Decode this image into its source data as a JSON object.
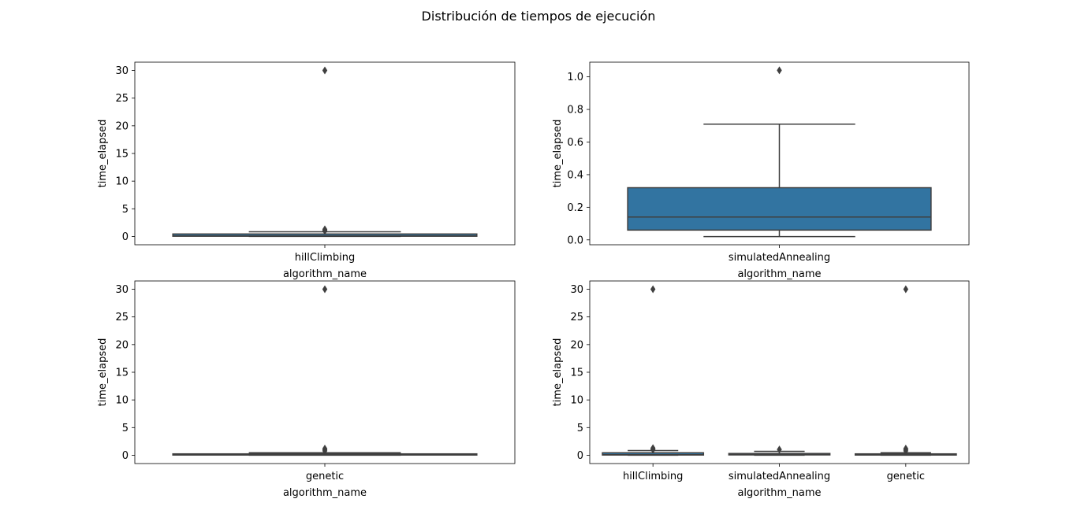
{
  "figure": {
    "title": "Distribución de tiempos de ejecución"
  },
  "colors": {
    "box_fill": "#3274a1",
    "box_edge": "#3f3f3f",
    "axes_edge": "#000000"
  },
  "chart_data": [
    {
      "type": "box",
      "xlabel": "algorithm_name",
      "ylabel": "time_elapsed",
      "ylim": [
        -1.5,
        31.5
      ],
      "yticks": [
        0,
        5,
        10,
        15,
        20,
        25,
        30
      ],
      "categories": [
        "hillClimbing"
      ],
      "boxes": [
        {
          "category": "hillClimbing",
          "whisker_low": 0.02,
          "q1": 0.04,
          "median": 0.1,
          "q3": 0.45,
          "whisker_high": 0.85,
          "outliers": [
            1.0,
            1.1,
            1.3,
            30.0
          ]
        }
      ]
    },
    {
      "type": "box",
      "xlabel": "algorithm_name",
      "ylabel": "time_elapsed",
      "ylim": [
        -0.03,
        1.09
      ],
      "yticks": [
        0.0,
        0.2,
        0.4,
        0.6,
        0.8,
        1.0
      ],
      "tick_labels": [
        "0.0",
        "0.2",
        "0.4",
        "0.6",
        "0.8",
        "1.0"
      ],
      "categories": [
        "simulatedAnnealing"
      ],
      "boxes": [
        {
          "category": "simulatedAnnealing",
          "whisker_low": 0.02,
          "q1": 0.06,
          "median": 0.14,
          "q3": 0.32,
          "whisker_high": 0.71,
          "outliers": [
            1.04
          ]
        }
      ]
    },
    {
      "type": "box",
      "xlabel": "algorithm_name",
      "ylabel": "time_elapsed",
      "ylim": [
        -1.5,
        31.5
      ],
      "yticks": [
        0,
        5,
        10,
        15,
        20,
        25,
        30
      ],
      "categories": [
        "genetic"
      ],
      "boxes": [
        {
          "category": "genetic",
          "whisker_low": 0.01,
          "q1": 0.05,
          "median": 0.1,
          "q3": 0.25,
          "whisker_high": 0.45,
          "outliers": [
            0.8,
            1.0,
            1.2,
            30.0
          ]
        }
      ]
    },
    {
      "type": "box",
      "xlabel": "algorithm_name",
      "ylabel": "time_elapsed",
      "ylim": [
        -1.5,
        31.5
      ],
      "yticks": [
        0,
        5,
        10,
        15,
        20,
        25,
        30
      ],
      "categories": [
        "hillClimbing",
        "simulatedAnnealing",
        "genetic"
      ],
      "boxes": [
        {
          "category": "hillClimbing",
          "whisker_low": 0.02,
          "q1": 0.04,
          "median": 0.1,
          "q3": 0.45,
          "whisker_high": 0.85,
          "outliers": [
            1.0,
            1.1,
            1.3,
            30.0
          ]
        },
        {
          "category": "simulatedAnnealing",
          "whisker_low": 0.02,
          "q1": 0.06,
          "median": 0.14,
          "q3": 0.32,
          "whisker_high": 0.71,
          "outliers": [
            1.04
          ]
        },
        {
          "category": "genetic",
          "whisker_low": 0.01,
          "q1": 0.05,
          "median": 0.1,
          "q3": 0.25,
          "whisker_high": 0.45,
          "outliers": [
            0.8,
            1.0,
            1.2,
            30.0
          ]
        }
      ]
    }
  ]
}
